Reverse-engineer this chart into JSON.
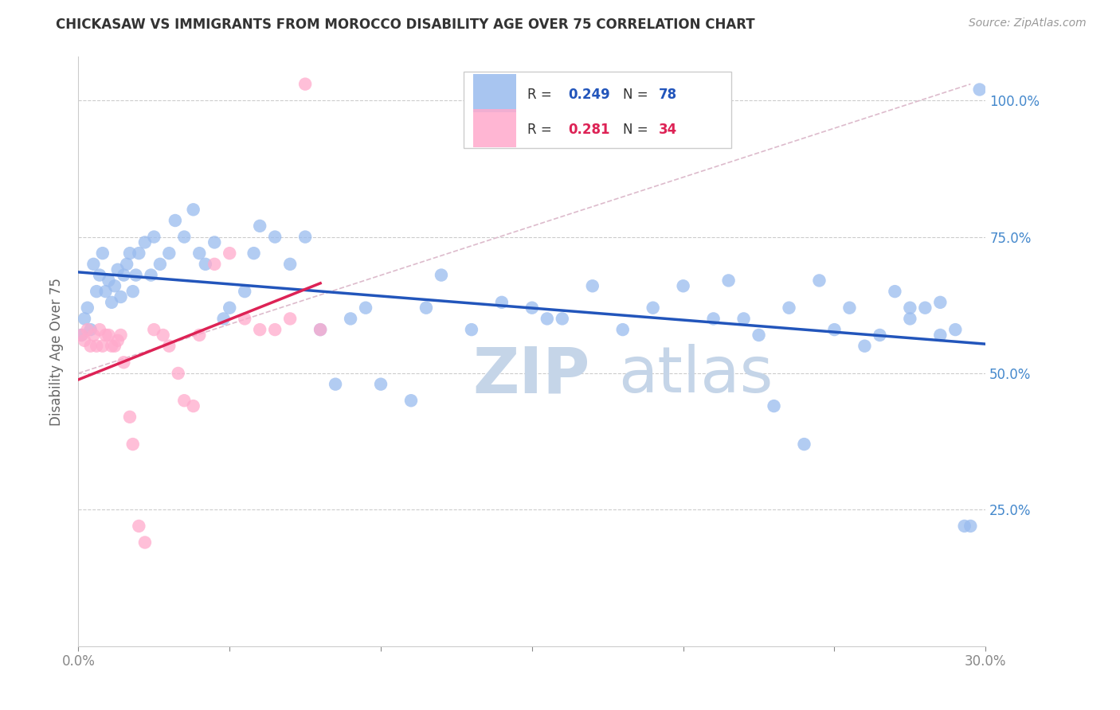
{
  "title": "CHICKASAW VS IMMIGRANTS FROM MOROCCO DISABILITY AGE OVER 75 CORRELATION CHART",
  "source": "Source: ZipAtlas.com",
  "ylabel": "Disability Age Over 75",
  "ytick_labels": [
    "100.0%",
    "75.0%",
    "50.0%",
    "25.0%"
  ],
  "ytick_values": [
    1.0,
    0.75,
    0.5,
    0.25
  ],
  "r_chickasaw": 0.249,
  "n_chickasaw": 78,
  "r_morocco": 0.281,
  "n_morocco": 34,
  "blue_scatter_color": "#99BBEE",
  "pink_scatter_color": "#FFAACC",
  "blue_line_color": "#2255BB",
  "pink_line_color": "#DD2255",
  "dashed_line_color": "#DDBBCC",
  "right_axis_color": "#4488CC",
  "watermark_color": "#C5D5E8",
  "background_color": "#FFFFFF",
  "grid_color": "#CCCCCC",
  "xlim": [
    0.0,
    0.3
  ],
  "ylim": [
    0.0,
    1.08
  ],
  "chickasaw_x": [
    0.001,
    0.002,
    0.003,
    0.004,
    0.005,
    0.006,
    0.007,
    0.008,
    0.009,
    0.01,
    0.011,
    0.012,
    0.013,
    0.014,
    0.015,
    0.016,
    0.017,
    0.018,
    0.019,
    0.02,
    0.022,
    0.024,
    0.025,
    0.027,
    0.03,
    0.032,
    0.035,
    0.038,
    0.04,
    0.042,
    0.045,
    0.048,
    0.05,
    0.055,
    0.058,
    0.06,
    0.065,
    0.07,
    0.075,
    0.08,
    0.085,
    0.09,
    0.095,
    0.1,
    0.11,
    0.115,
    0.12,
    0.13,
    0.14,
    0.15,
    0.155,
    0.16,
    0.17,
    0.18,
    0.19,
    0.2,
    0.21,
    0.22,
    0.23,
    0.24,
    0.25,
    0.26,
    0.27,
    0.275,
    0.28,
    0.285,
    0.29,
    0.293,
    0.295,
    0.298,
    0.285,
    0.275,
    0.265,
    0.255,
    0.245,
    0.235,
    0.225,
    0.215
  ],
  "chickasaw_y": [
    0.57,
    0.6,
    0.62,
    0.58,
    0.7,
    0.65,
    0.68,
    0.72,
    0.65,
    0.67,
    0.63,
    0.66,
    0.69,
    0.64,
    0.68,
    0.7,
    0.72,
    0.65,
    0.68,
    0.72,
    0.74,
    0.68,
    0.75,
    0.7,
    0.72,
    0.78,
    0.75,
    0.8,
    0.72,
    0.7,
    0.74,
    0.6,
    0.62,
    0.65,
    0.72,
    0.77,
    0.75,
    0.7,
    0.75,
    0.58,
    0.48,
    0.6,
    0.62,
    0.48,
    0.45,
    0.62,
    0.68,
    0.58,
    0.63,
    0.62,
    0.6,
    0.6,
    0.66,
    0.58,
    0.62,
    0.66,
    0.6,
    0.6,
    0.44,
    0.37,
    0.58,
    0.55,
    0.65,
    0.6,
    0.62,
    0.63,
    0.58,
    0.22,
    0.22,
    1.02,
    0.57,
    0.62,
    0.57,
    0.62,
    0.67,
    0.62,
    0.57,
    0.67
  ],
  "morocco_x": [
    0.001,
    0.002,
    0.003,
    0.004,
    0.005,
    0.006,
    0.007,
    0.008,
    0.009,
    0.01,
    0.011,
    0.012,
    0.013,
    0.014,
    0.015,
    0.017,
    0.018,
    0.02,
    0.022,
    0.025,
    0.028,
    0.03,
    0.033,
    0.035,
    0.038,
    0.04,
    0.045,
    0.05,
    0.055,
    0.06,
    0.065,
    0.07,
    0.075,
    0.08
  ],
  "morocco_y": [
    0.57,
    0.56,
    0.58,
    0.55,
    0.57,
    0.55,
    0.58,
    0.55,
    0.57,
    0.57,
    0.55,
    0.55,
    0.56,
    0.57,
    0.52,
    0.42,
    0.37,
    0.22,
    0.19,
    0.58,
    0.57,
    0.55,
    0.5,
    0.45,
    0.44,
    0.57,
    0.7,
    0.72,
    0.6,
    0.58,
    0.58,
    0.6,
    1.03,
    0.58
  ]
}
